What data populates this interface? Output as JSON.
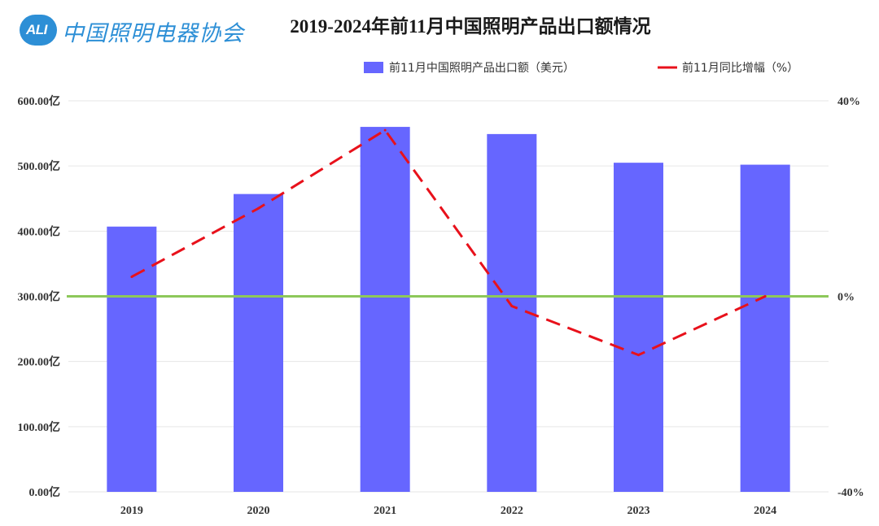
{
  "logo": {
    "badge": "ALI",
    "name": "中国照明电器协会"
  },
  "colors": {
    "bar": "#6666ff",
    "line": "#e8111b",
    "zero_line": "#8dc85a",
    "grid": "#e6e6e6",
    "logo": "#2d8fd6"
  },
  "chart_data": {
    "type": "bar",
    "title": "2019-2024年前11月中国照明产品出口额情况",
    "categories": [
      "2019",
      "2020",
      "2021",
      "2022",
      "2023",
      "2024"
    ],
    "series": [
      {
        "name": "前11月中国照明产品出口额（美元）",
        "type": "bar",
        "axis": "left",
        "values": [
          407,
          457,
          560,
          549,
          505,
          502
        ]
      },
      {
        "name": "前11月同比增幅（%）",
        "type": "line",
        "style": "dashed",
        "axis": "right",
        "values": [
          4,
          18,
          34,
          -2,
          -12,
          0
        ]
      }
    ],
    "y_left": {
      "min": 0,
      "max": 600,
      "step": 100,
      "ticks": [
        "0.00亿",
        "100.00亿",
        "200.00亿",
        "300.00亿",
        "400.00亿",
        "500.00亿",
        "600.00亿"
      ]
    },
    "y_right": {
      "min": -40,
      "max": 40,
      "ticks": [
        "-40%",
        "0%",
        "40%"
      ],
      "tick_values": [
        -40,
        0,
        40
      ]
    },
    "reference_line": {
      "axis": "right",
      "value": 0
    },
    "legend_position": "top-right",
    "grid": true
  }
}
